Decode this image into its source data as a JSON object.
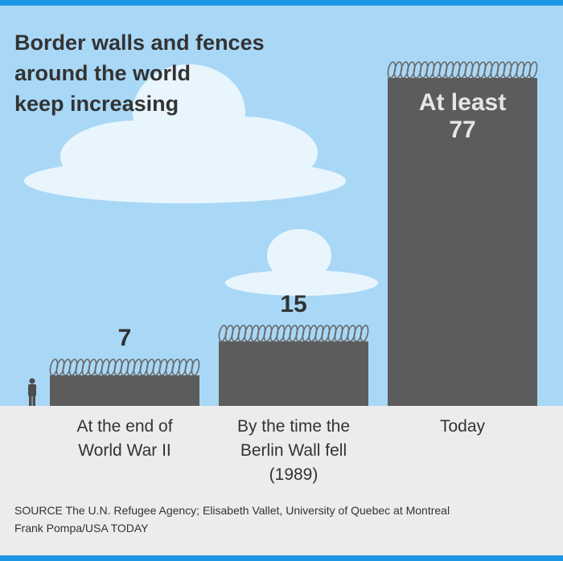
{
  "colors": {
    "top_bar": "#1e96e6",
    "sky": "#a9d8f7",
    "ground": "#ececec",
    "wall": "#5c5c5c",
    "wire": "#6a6a6a",
    "text": "#333333"
  },
  "chart_data": {
    "type": "bar",
    "title_lines": [
      "Border walls and fences",
      "around the world",
      "keep increasing"
    ],
    "categories": [
      [
        "At the end of",
        "World War II"
      ],
      [
        "By the time the",
        "Berlin Wall fell",
        "(1989)"
      ],
      [
        "Today"
      ]
    ],
    "values": [
      7,
      15,
      77
    ],
    "data_labels": [
      [
        "7"
      ],
      [
        "15"
      ],
      [
        "At least",
        "77"
      ]
    ],
    "ylim": [
      0,
      77
    ]
  },
  "footer": {
    "source": "SOURCE The U.N. Refugee Agency; Elisabeth Vallet, University of Quebec at Montreal",
    "credit": "Frank Pompa/USA TODAY"
  }
}
